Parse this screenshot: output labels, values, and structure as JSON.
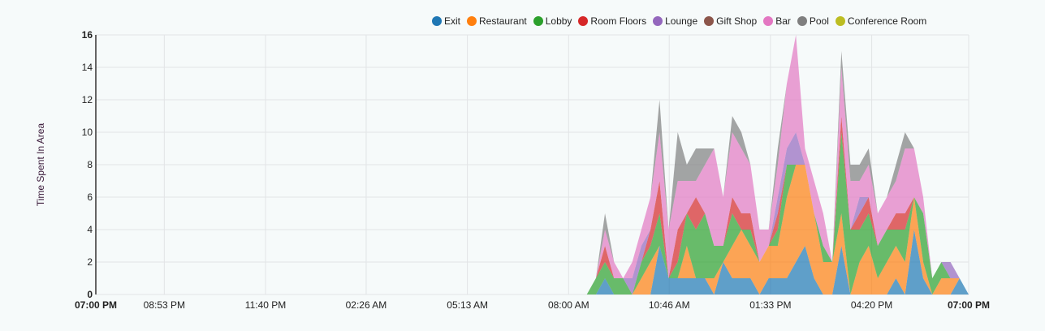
{
  "chart_data": {
    "type": "area",
    "stacked": true,
    "ylabel": "Time Spent In Area",
    "ylim": [
      0,
      16
    ],
    "yticks": [
      0,
      2,
      4,
      6,
      8,
      10,
      12,
      14,
      16
    ],
    "xlim": [
      "07:00 PM",
      "07:00 PM"
    ],
    "xtick_labels": [
      "07:00 PM",
      "08:53 PM",
      "11:40 PM",
      "02:26 AM",
      "05:13 AM",
      "08:00 AM",
      "10:46 AM",
      "01:33 PM",
      "04:20 PM",
      "07:00 PM"
    ],
    "grid": true,
    "legend_position": "top-right",
    "x": [
      "08:30 AM",
      "08:45 AM",
      "09:00 AM",
      "09:15 AM",
      "09:30 AM",
      "09:45 AM",
      "10:00 AM",
      "10:15 AM",
      "10:30 AM",
      "10:45 AM",
      "11:00 AM",
      "11:15 AM",
      "11:30 AM",
      "11:45 AM",
      "12:00 PM",
      "12:15 PM",
      "12:30 PM",
      "12:45 PM",
      "01:00 PM",
      "01:15 PM",
      "01:30 PM",
      "01:45 PM",
      "02:00 PM",
      "02:15 PM",
      "02:30 PM",
      "02:45 PM",
      "03:00 PM",
      "03:15 PM",
      "03:30 PM",
      "03:45 PM",
      "04:00 PM",
      "04:15 PM",
      "04:30 PM",
      "04:45 PM",
      "05:00 PM",
      "05:15 PM",
      "05:30 PM",
      "05:45 PM",
      "06:00 PM",
      "06:15 PM",
      "06:30 PM",
      "06:45 PM",
      "07:00 PM"
    ],
    "series": [
      {
        "name": "Exit",
        "color": "#1f77b4",
        "values": [
          0,
          0,
          1,
          0,
          0,
          0,
          0,
          0,
          3,
          1,
          1,
          1,
          1,
          1,
          0,
          2,
          1,
          1,
          1,
          0,
          1,
          1,
          1,
          2,
          3,
          1,
          0,
          0,
          3,
          0,
          0,
          0,
          0,
          0,
          1,
          0,
          4,
          1,
          0,
          0,
          0,
          1,
          0
        ]
      },
      {
        "name": "Restaurant",
        "color": "#ff7f0e",
        "values": [
          0,
          0,
          0,
          0,
          0,
          0,
          1,
          2,
          0,
          0,
          0,
          2,
          0,
          0,
          1,
          0,
          2,
          3,
          2,
          2,
          2,
          2,
          5,
          6,
          5,
          4,
          2,
          2,
          2,
          0,
          2,
          3,
          1,
          2,
          2,
          2,
          2,
          1,
          0,
          1,
          1,
          0,
          0
        ]
      },
      {
        "name": "Lobby",
        "color": "#2ca02c",
        "values": [
          0,
          1,
          1,
          1,
          1,
          0,
          1,
          1,
          2,
          0,
          1,
          2,
          3,
          4,
          2,
          1,
          2,
          0,
          1,
          0,
          0,
          1,
          2,
          0,
          0,
          0,
          1,
          0,
          5,
          4,
          2,
          2,
          2,
          2,
          1,
          2,
          0,
          3,
          1,
          1,
          0,
          0,
          0
        ]
      },
      {
        "name": "Room Floors",
        "color": "#d62728",
        "values": [
          0,
          0,
          1,
          0,
          0,
          0,
          0,
          1,
          2,
          0,
          2,
          0,
          2,
          0,
          0,
          0,
          1,
          1,
          1,
          0,
          0,
          1,
          0,
          0,
          0,
          0,
          0,
          0,
          1,
          0,
          1,
          1,
          0,
          0,
          1,
          1,
          0,
          0,
          0,
          0,
          0,
          0,
          0
        ]
      },
      {
        "name": "Lounge",
        "color": "#9467bd",
        "values": [
          0,
          0,
          0,
          0,
          0,
          1,
          1,
          0,
          0,
          0,
          0,
          0,
          0,
          0,
          0,
          0,
          0,
          0,
          0,
          0,
          0,
          1,
          1,
          2,
          0,
          0,
          0,
          0,
          0,
          0,
          1,
          0,
          0,
          0,
          0,
          0,
          0,
          0,
          0,
          0,
          1,
          0,
          0
        ]
      },
      {
        "name": "Gift Shop",
        "color": "#8c564b",
        "values": [
          0,
          0,
          0,
          0,
          0,
          0,
          0,
          0,
          0,
          0,
          0,
          0,
          0,
          0,
          0,
          0,
          0,
          0,
          0,
          0,
          0,
          0,
          0,
          0,
          0,
          0,
          0,
          0,
          0,
          0,
          0,
          0,
          0,
          0,
          0,
          0,
          0,
          0,
          0,
          0,
          0,
          0,
          0
        ]
      },
      {
        "name": "Bar",
        "color": "#e377c2",
        "values": [
          0,
          0,
          1,
          1,
          0,
          1,
          1,
          2,
          3,
          3,
          3,
          2,
          1,
          3,
          6,
          3,
          4,
          4,
          3,
          2,
          1,
          2,
          4,
          6,
          1,
          2,
          2,
          0,
          3,
          3,
          1,
          2,
          2,
          2,
          2,
          4,
          3,
          1,
          0,
          0,
          0,
          0,
          0
        ]
      },
      {
        "name": "Pool",
        "color": "#7f7f7f",
        "values": [
          0,
          0,
          1,
          0,
          0,
          0,
          0,
          0,
          2,
          0,
          3,
          1,
          2,
          1,
          0,
          0,
          1,
          1,
          0,
          0,
          0,
          1,
          0,
          0,
          0,
          0,
          0,
          0,
          1,
          1,
          1,
          1,
          0,
          0,
          1,
          1,
          0,
          0,
          0,
          0,
          0,
          0,
          0
        ]
      },
      {
        "name": "Conference Room",
        "color": "#bcbd22",
        "values": [
          0,
          0,
          0,
          0,
          0,
          0,
          0,
          0,
          0,
          0,
          0,
          0,
          0,
          0,
          0,
          0,
          0,
          0,
          0,
          0,
          0,
          0,
          0,
          0,
          0,
          0,
          0,
          0,
          0,
          0,
          0,
          0,
          0,
          0,
          0,
          0,
          0,
          0,
          0,
          0,
          0,
          0,
          0
        ]
      }
    ]
  }
}
